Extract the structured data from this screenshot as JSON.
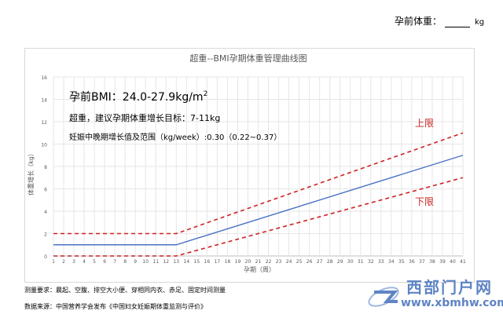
{
  "header": {
    "prepreg_weight_label": "孕前体重：",
    "unit": "kg"
  },
  "chart_data": {
    "type": "line",
    "title": "超重--BMI孕期体重管理曲线图",
    "xlabel": "孕期（周）",
    "ylabel": "体重增长（kg）",
    "x": [
      1,
      2,
      3,
      4,
      5,
      6,
      7,
      8,
      9,
      10,
      11,
      12,
      13,
      14,
      15,
      16,
      17,
      18,
      19,
      20,
      21,
      22,
      23,
      24,
      25,
      26,
      27,
      28,
      29,
      30,
      31,
      32,
      33,
      34,
      35,
      36,
      37,
      38,
      39,
      40,
      41
    ],
    "xlim": [
      1,
      41
    ],
    "ylim": [
      0,
      16
    ],
    "yticks": [
      0,
      2,
      4,
      6,
      8,
      10,
      12,
      14,
      16
    ],
    "grid": true,
    "series": [
      {
        "name": "上限",
        "color": "#cc2222",
        "dash": true,
        "points": [
          [
            1,
            2
          ],
          [
            13,
            2
          ],
          [
            41,
            11
          ]
        ]
      },
      {
        "name": "",
        "color": "#4a72c4",
        "dash": false,
        "points": [
          [
            1,
            1
          ],
          [
            13,
            1
          ],
          [
            41,
            9
          ]
        ]
      },
      {
        "name": "下限",
        "color": "#cc2222",
        "dash": true,
        "points": [
          [
            1,
            0
          ],
          [
            13,
            0
          ],
          [
            41,
            7
          ]
        ]
      }
    ],
    "annotations": {
      "bmi": "孕前BMI：24.0-27.9kg/m",
      "bmi_sup": "2",
      "target": "超重，建议孕期体重增长目标：7-11kg",
      "rate": "妊娠中晚期增长值及范围（kg/week）:0.30（0.22~0.37）",
      "upper_label": "上限",
      "lower_label": "下限"
    }
  },
  "footer": {
    "measure": "测量要求：晨起、空腹、排空大小便、穿相同内衣、赤足、固定时间测量",
    "source": "数据来源：中国营养学会发布《中国妇女妊娠期体重监测与评价》"
  },
  "watermark": {
    "name": "西部门户网",
    "url": "www.xbmhw.com"
  }
}
